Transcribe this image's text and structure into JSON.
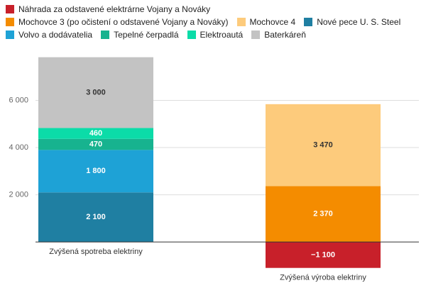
{
  "chart_data": {
    "type": "stacked-bar",
    "categories": [
      "Zvýšená spotreba elektriny",
      "Zvýšená výroba elektriny"
    ],
    "series": [
      {
        "name": "Náhrada za odstavené elektrárne Vojany a Nováky",
        "color": "#c8202a",
        "values": [
          null,
          -1100
        ],
        "value_labels": [
          null,
          "−1 100"
        ]
      },
      {
        "name": "Mochovce 3 (po očistení o odstavené Vojany a Nováky)",
        "color": "#f48c00",
        "values": [
          null,
          2370
        ],
        "value_labels": [
          null,
          "2 370"
        ]
      },
      {
        "name": "Mochovce 4",
        "color": "#fdcb7c",
        "values": [
          null,
          3470
        ],
        "value_labels": [
          null,
          "3 470"
        ]
      },
      {
        "name": "Nové pece U. S. Steel",
        "color": "#1f7fa2",
        "values": [
          2100,
          null
        ],
        "value_labels": [
          "2 100",
          null
        ]
      },
      {
        "name": "Volvo a dodávatelia",
        "color": "#1ea2d6",
        "values": [
          1800,
          null
        ],
        "value_labels": [
          "1 800",
          null
        ]
      },
      {
        "name": "Tepelné čerpadlá",
        "color": "#17b38f",
        "values": [
          470,
          null
        ]
      },
      {
        "name": "Elektroautá",
        "color": "#0bdca8",
        "values": [
          460,
          null
        ]
      },
      {
        "name": "Baterkáreň",
        "color": "#c3c3c3",
        "values": [
          3000,
          null
        ],
        "value_labels": [
          "3 000",
          null
        ]
      }
    ],
    "ylim": [
      -1500,
      8000
    ],
    "yticks": [
      {
        "value": 2000,
        "label": "2 000"
      },
      {
        "value": 4000,
        "label": "4 000"
      },
      {
        "value": 6000,
        "label": "6 000"
      }
    ],
    "grid": true
  }
}
